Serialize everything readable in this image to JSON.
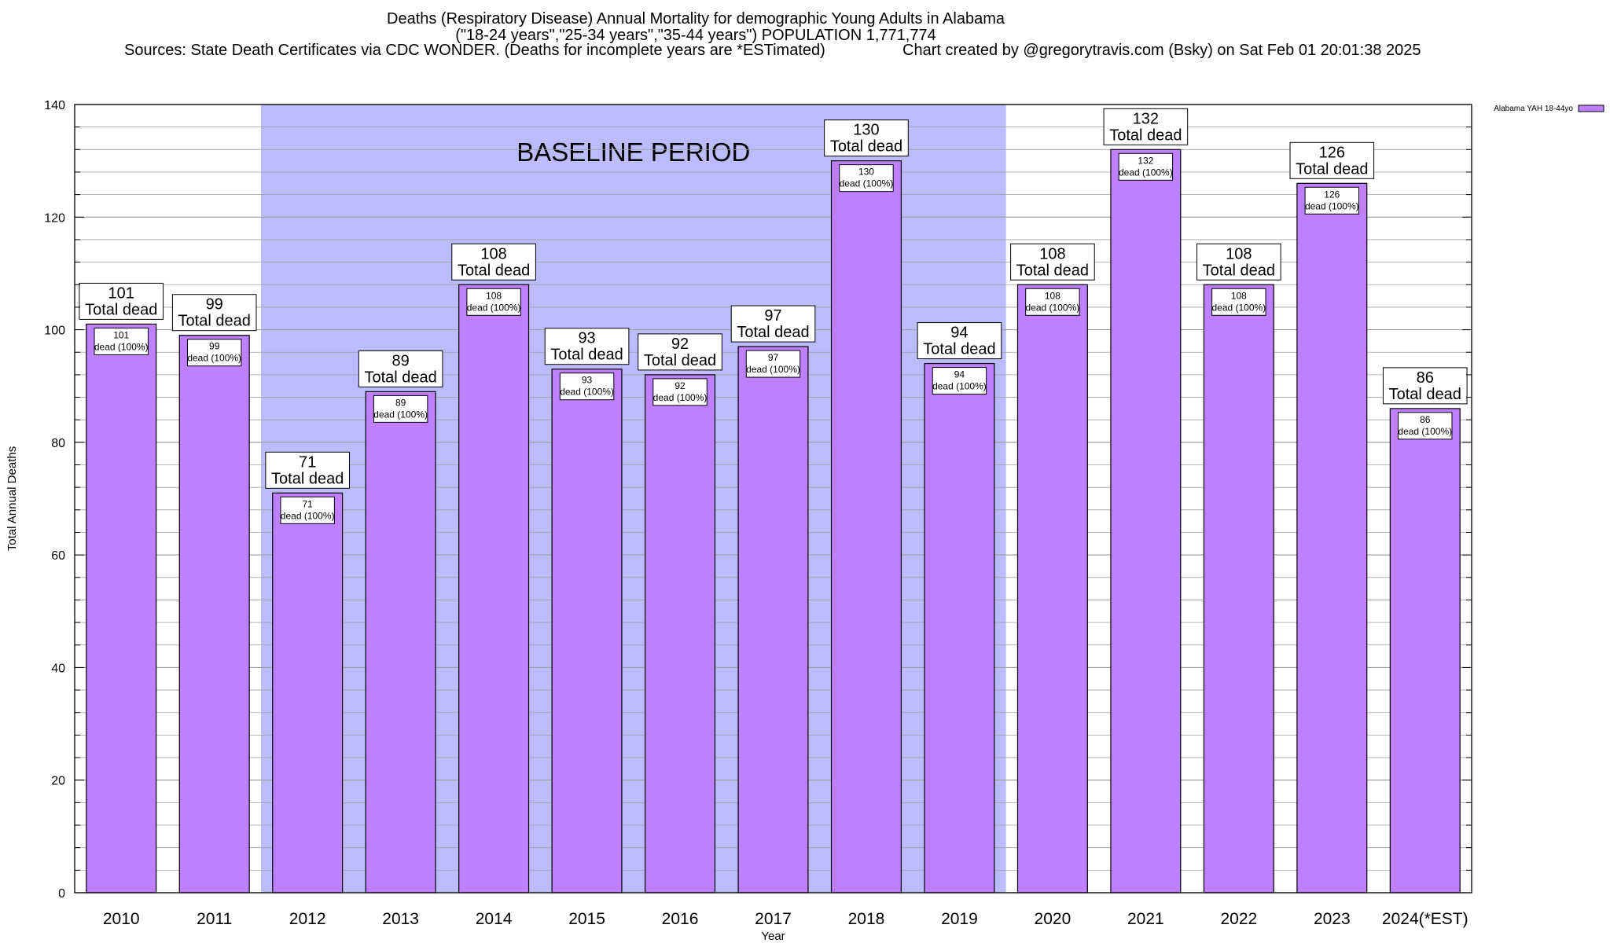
{
  "header": {
    "title": "Deaths (Respiratory Disease) Annual Mortality for demographic Young Adults in Alabama",
    "subtitle": "(\"18-24 years\",\"25-34 years\",\"35-44 years\") POPULATION 1,771,774",
    "sources": "Sources: State Death Certificates via CDC WONDER. (Deaths for incomplete years are *ESTimated)",
    "credit": "Chart created by @gregorytravis.com (Bsky) on Sat Feb 01 20:01:38 2025"
  },
  "colors": {
    "bar_fill": "#bf80ff",
    "bar_stroke": "#000000",
    "baseline_band": "#bcbcfc",
    "grid": "#a0a0a0"
  },
  "chart_data": {
    "type": "bar",
    "xlabel": "Year",
    "ylabel": "Total Annual Deaths",
    "ylim": [
      0,
      140
    ],
    "yticks": [
      0,
      20,
      40,
      60,
      80,
      100,
      120,
      140
    ],
    "grid": true,
    "legend_position": "top-right",
    "categories": [
      "2010",
      "2011",
      "2012",
      "2013",
      "2014",
      "2015",
      "2016",
      "2017",
      "2018",
      "2019",
      "2020",
      "2021",
      "2022",
      "2023",
      "2024(*EST)"
    ],
    "series": [
      {
        "name": "Alabama YAH 18-44yo",
        "values": [
          101,
          99,
          71,
          89,
          108,
          93,
          92,
          97,
          130,
          94,
          108,
          132,
          108,
          126,
          86
        ]
      }
    ],
    "total_label": "Total dead",
    "inner_label": "dead (100%)",
    "annotation": {
      "text": "BASELINE PERIOD",
      "from_category": "2012",
      "to_category": "2019"
    }
  }
}
